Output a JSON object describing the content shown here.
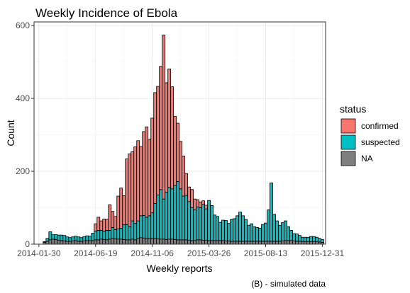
{
  "chart_data": {
    "type": "bar",
    "stacked": true,
    "title": "Weekly Incidence of Ebola",
    "xlabel": "Weekly reports",
    "ylabel": "Count",
    "caption": "(B) - simulated data",
    "ylim": [
      0,
      610
    ],
    "yticks": [
      0,
      200,
      400,
      600
    ],
    "xlim": [
      "2014-01-18",
      "2016-01-08"
    ],
    "xticks": [
      "2014-01-30",
      "2014-06-19",
      "2014-11-06",
      "2015-03-26",
      "2015-08-13",
      "2015-12-31"
    ],
    "legend": {
      "title": "status",
      "position": "right"
    },
    "grid": true,
    "colors": {
      "confirmed": "#f8766d",
      "suspected": "#00bfc4",
      "NA": "#7f7f7f"
    },
    "x": [
      "2014-02-13",
      "2014-02-20",
      "2014-02-27",
      "2014-03-06",
      "2014-03-13",
      "2014-03-20",
      "2014-03-27",
      "2014-04-03",
      "2014-04-10",
      "2014-04-17",
      "2014-04-24",
      "2014-05-01",
      "2014-05-08",
      "2014-05-15",
      "2014-05-22",
      "2014-05-29",
      "2014-06-05",
      "2014-06-12",
      "2014-06-19",
      "2014-06-26",
      "2014-07-03",
      "2014-07-10",
      "2014-07-17",
      "2014-07-24",
      "2014-07-31",
      "2014-08-07",
      "2014-08-14",
      "2014-08-21",
      "2014-08-28",
      "2014-09-04",
      "2014-09-11",
      "2014-09-18",
      "2014-09-25",
      "2014-10-02",
      "2014-10-09",
      "2014-10-16",
      "2014-10-23",
      "2014-10-30",
      "2014-11-06",
      "2014-11-13",
      "2014-11-20",
      "2014-11-27",
      "2014-12-04",
      "2014-12-11",
      "2014-12-18",
      "2014-12-25",
      "2015-01-01",
      "2015-01-08",
      "2015-01-15",
      "2015-01-22",
      "2015-01-29",
      "2015-02-05",
      "2015-02-12",
      "2015-02-19",
      "2015-02-26",
      "2015-03-05",
      "2015-03-12",
      "2015-03-19",
      "2015-03-26",
      "2015-04-02",
      "2015-04-09",
      "2015-04-16",
      "2015-04-23",
      "2015-04-30",
      "2015-05-07",
      "2015-05-14",
      "2015-05-21",
      "2015-05-28",
      "2015-06-04",
      "2015-06-11",
      "2015-06-18",
      "2015-06-25",
      "2015-07-02",
      "2015-07-09",
      "2015-07-16",
      "2015-07-23",
      "2015-07-30",
      "2015-08-06",
      "2015-08-13",
      "2015-08-20",
      "2015-08-27",
      "2015-09-03",
      "2015-09-10",
      "2015-09-17",
      "2015-09-24",
      "2015-10-01",
      "2015-10-08",
      "2015-10-15",
      "2015-10-22",
      "2015-10-29",
      "2015-11-05",
      "2015-11-12",
      "2015-11-19",
      "2015-11-26",
      "2015-12-03",
      "2015-12-10",
      "2015-12-17",
      "2015-12-24",
      "2015-12-31"
    ],
    "series": [
      {
        "name": "NA",
        "values": [
          5,
          8,
          12,
          14,
          13,
          11,
          10,
          9,
          8,
          8,
          9,
          10,
          8,
          8,
          9,
          10,
          10,
          10,
          12,
          12,
          14,
          13,
          12,
          14,
          16,
          15,
          14,
          14,
          13,
          12,
          12,
          14,
          12,
          16,
          18,
          17,
          16,
          16,
          16,
          16,
          15,
          14,
          14,
          13,
          14,
          14,
          13,
          12,
          12,
          12,
          12,
          11,
          10,
          10,
          12,
          12,
          11,
          11,
          10,
          10,
          10,
          10,
          10,
          10,
          9,
          9,
          8,
          8,
          8,
          8,
          8,
          8,
          8,
          8,
          8,
          8,
          8,
          8,
          8,
          8,
          8,
          8,
          8,
          8,
          9,
          10,
          10,
          10,
          9,
          8,
          8,
          7,
          7,
          7,
          7,
          7,
          7,
          6,
          5
        ]
      },
      {
        "name": "suspected",
        "values": [
          2,
          8,
          22,
          12,
          13,
          14,
          15,
          15,
          12,
          10,
          11,
          12,
          12,
          10,
          12,
          13,
          12,
          20,
          24,
          26,
          24,
          22,
          26,
          24,
          30,
          25,
          28,
          30,
          40,
          42,
          36,
          50,
          45,
          48,
          60,
          62,
          58,
          62,
          70,
          96,
          120,
          136,
          110,
          130,
          142,
          138,
          148,
          160,
          140,
          120,
          122,
          106,
          90,
          84,
          90,
          88,
          98,
          86,
          110,
          96,
          70,
          66,
          50,
          56,
          56,
          48,
          60,
          62,
          70,
          80,
          70,
          60,
          44,
          48,
          40,
          38,
          36,
          46,
          50,
          86,
          160,
          74,
          56,
          44,
          50,
          54,
          38,
          28,
          20,
          20,
          16,
          12,
          12,
          12,
          14,
          14,
          12,
          10,
          8
        ]
      },
      {
        "name": "confirmed",
        "values": [
          0,
          0,
          0,
          0,
          0,
          0,
          0,
          0,
          0,
          0,
          0,
          0,
          0,
          0,
          0,
          0,
          0,
          0,
          20,
          36,
          26,
          34,
          30,
          70,
          44,
          36,
          90,
          110,
          80,
          180,
          200,
          190,
          210,
          220,
          190,
          230,
          248,
          210,
          260,
          304,
          298,
          338,
          450,
          300,
          325,
          280,
          190,
          160,
          130,
          110,
          60,
          40,
          50,
          30,
          20,
          16,
          10,
          10,
          0,
          0,
          0,
          0,
          0,
          0,
          0,
          0,
          0,
          0,
          0,
          0,
          0,
          0,
          0,
          0,
          0,
          0,
          0,
          0,
          0,
          0,
          0,
          0,
          0,
          0,
          0,
          0,
          0,
          0,
          0,
          0,
          0,
          0,
          0,
          0,
          0,
          0,
          0,
          0,
          0
        ]
      }
    ]
  }
}
